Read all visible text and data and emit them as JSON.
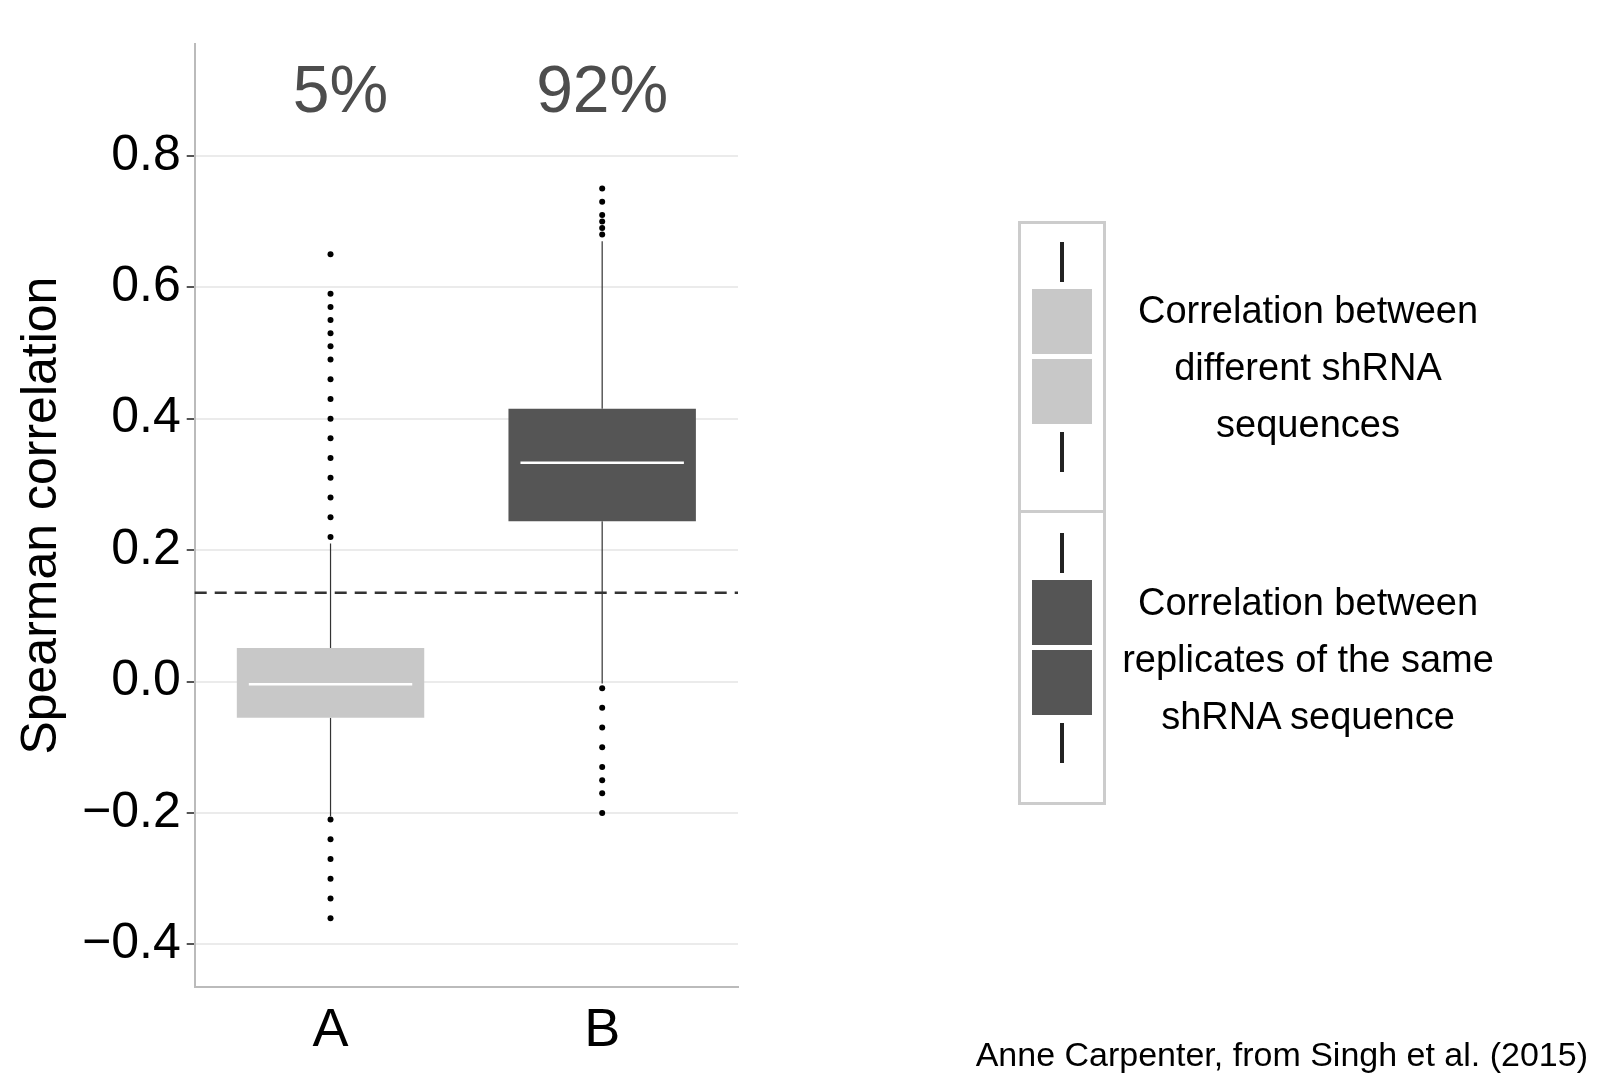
{
  "chart_data": {
    "type": "box",
    "ylabel": "Spearman correlation",
    "categories": [
      "A",
      "B"
    ],
    "ylim": [
      -0.465,
      0.97
    ],
    "yticks": [
      {
        "value": -0.4,
        "label": "−0.4"
      },
      {
        "value": -0.2,
        "label": "−0.2"
      },
      {
        "value": 0,
        "label": "0.0"
      },
      0.2,
      0.4,
      0.6,
      0.8
    ],
    "grid": "y",
    "legend": "right",
    "series": [
      {
        "name": "Correlation between different shRNA sequences",
        "color": "#c8c8c8",
        "boxes": [
          {
            "low": -0.205,
            "q1": -0.055,
            "median": -0.004,
            "q3": 0.051,
            "high": 0.21,
            "outliers": [
              0.22,
              0.25,
              0.28,
              0.31,
              0.34,
              0.37,
              0.4,
              0.43,
              0.46,
              0.49,
              0.51,
              0.53,
              0.55,
              0.57,
              0.59,
              0.65,
              -0.21,
              -0.24,
              -0.27,
              -0.3,
              -0.33,
              -0.36
            ]
          },
          null
        ]
      },
      {
        "name": "Correlation between replicates of the same shRNA sequence",
        "color": "#555555",
        "boxes": [
          null,
          {
            "low": -0.003,
            "q1": 0.244,
            "median": 0.333,
            "q3": 0.415,
            "high": 0.67,
            "outliers": [
              0.68,
              0.69,
              0.7,
              0.71,
              0.73,
              0.75,
              -0.01,
              -0.04,
              -0.07,
              -0.1,
              -0.13,
              -0.15,
              -0.17,
              -0.2
            ]
          }
        ]
      }
    ],
    "ref_lines": [
      {
        "axis": "y",
        "value": 0.135,
        "line_style": "dashed",
        "color": "#333333"
      }
    ],
    "annotations": [
      "5%",
      "92%",
      "Anne Carpenter, from Singh et al. (2015)"
    ]
  }
}
